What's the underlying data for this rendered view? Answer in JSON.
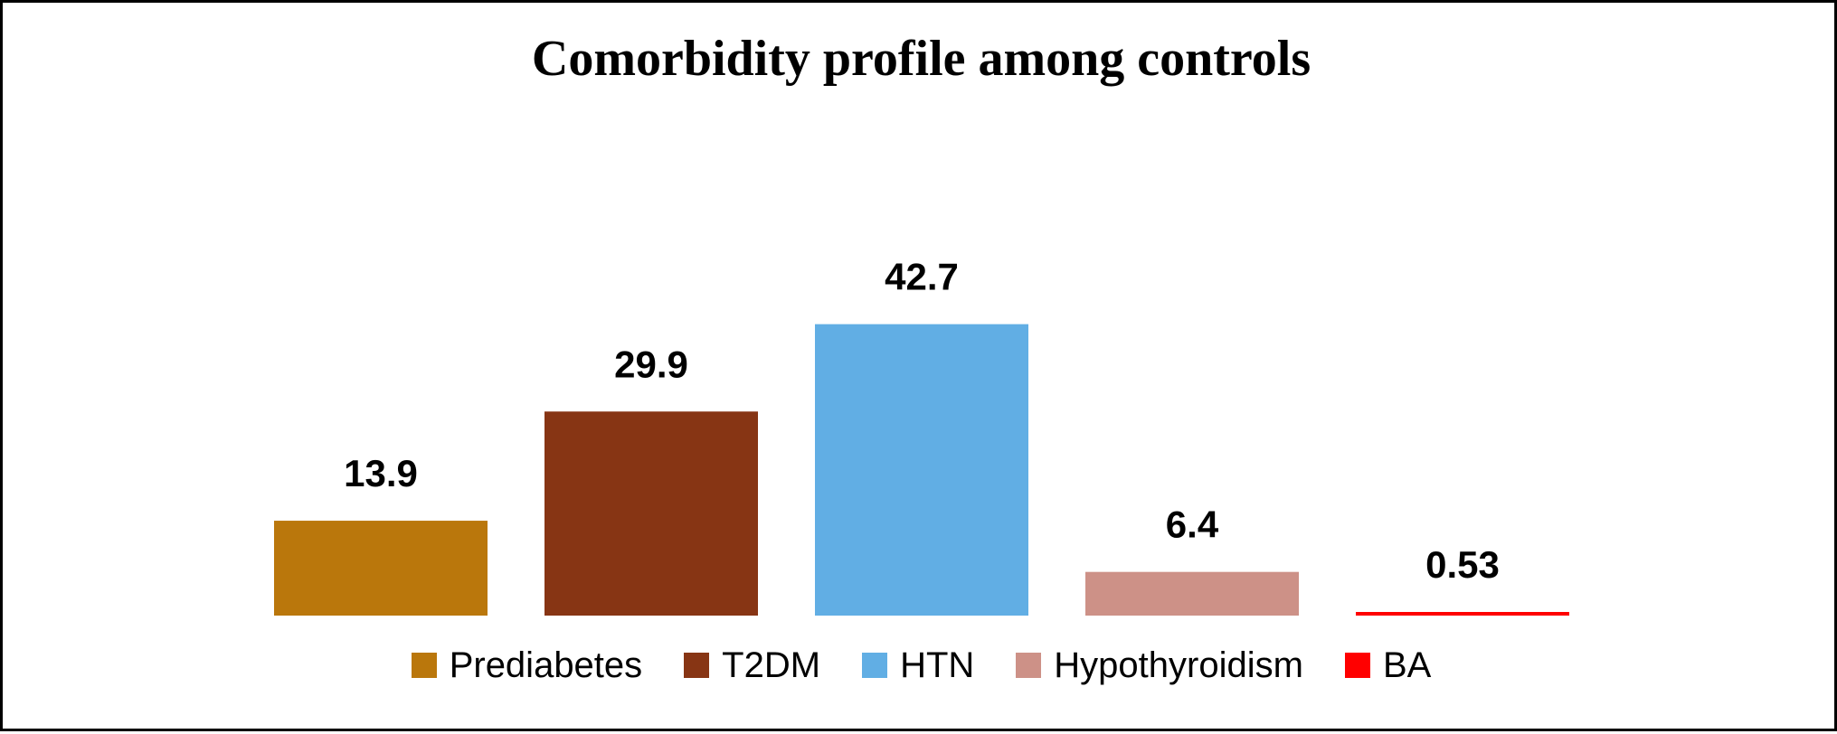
{
  "chart_data": {
    "type": "bar",
    "title": "Comorbidity profile among controls",
    "xlabel": "",
    "ylabel": "",
    "ylim": [
      0,
      50
    ],
    "grid": false,
    "legend_position": "bottom",
    "categories": [
      "Prediabetes",
      "T2DM",
      "HTN",
      "Hypothyroidism",
      "BA"
    ],
    "values": [
      13.9,
      29.9,
      42.7,
      6.4,
      0.53
    ],
    "value_labels": [
      "13.9",
      "29.9",
      "42.7",
      "6.4",
      "0.53"
    ],
    "colors": [
      "#BA770C",
      "#873514",
      "#61AEE4",
      "#CD9187",
      "#FF0000"
    ]
  }
}
